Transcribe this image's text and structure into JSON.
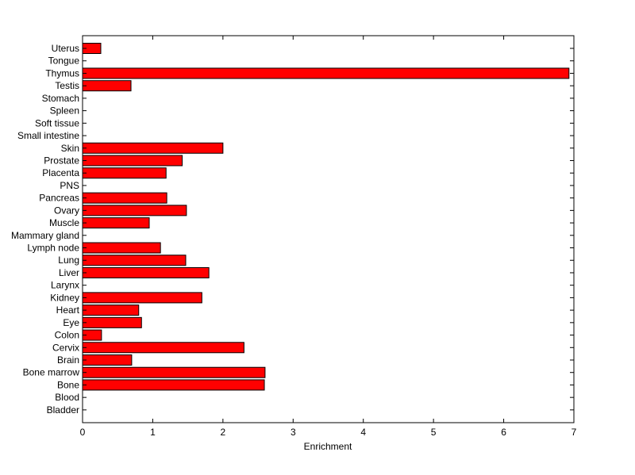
{
  "chart_data": {
    "type": "bar",
    "orientation": "horizontal",
    "title": "",
    "xlabel": "Enrichment",
    "ylabel": "",
    "xlim": [
      0,
      7
    ],
    "xticks": [
      "0",
      "1",
      "2",
      "3",
      "4",
      "5",
      "6",
      "7"
    ],
    "grid": false,
    "legend": "none",
    "bar_color": "#ff0000",
    "edge_color": "#000000",
    "categories": [
      "Uterus",
      "Tongue",
      "Thymus",
      "Testis",
      "Stomach",
      "Spleen",
      "Soft tissue",
      "Small intestine",
      "Skin",
      "Prostate",
      "Placenta",
      "PNS",
      "Pancreas",
      "Ovary",
      "Muscle",
      "Mammary gland",
      "Lymph node",
      "Lung",
      "Liver",
      "Larynx",
      "Kidney",
      "Heart",
      "Eye",
      "Colon",
      "Cervix",
      "Brain",
      "Bone marrow",
      "Bone",
      "Blood",
      "Bladder"
    ],
    "values": [
      0.26,
      0,
      6.93,
      0.69,
      0,
      0,
      0,
      0,
      2.0,
      1.42,
      1.19,
      0,
      1.2,
      1.48,
      0.95,
      0,
      1.11,
      1.47,
      1.8,
      0,
      1.7,
      0.8,
      0.84,
      0.27,
      2.3,
      0.7,
      2.6,
      2.59,
      0,
      0
    ]
  }
}
